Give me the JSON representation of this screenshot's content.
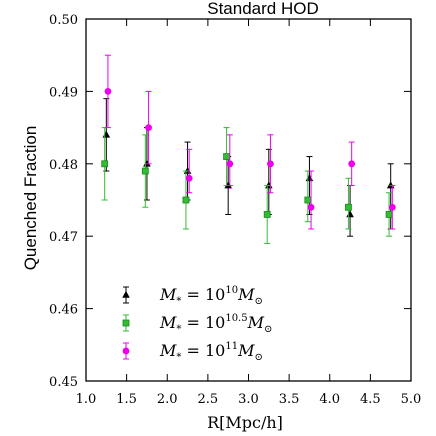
{
  "chart_data": {
    "type": "scatter",
    "title": "Standard HOD",
    "xlabel": "R[Mpc/h]",
    "ylabel": "Quenched Fraction",
    "xlim": [
      1.0,
      5.0
    ],
    "ylim": [
      0.45,
      0.5
    ],
    "xticks": [
      "1.0",
      "1.5",
      "2.0",
      "2.5",
      "3.0",
      "3.5",
      "4.0",
      "4.5",
      "5.0"
    ],
    "yticks": [
      "0.45",
      "0.46",
      "0.47",
      "0.48",
      "0.49",
      "0.50"
    ],
    "grid": false,
    "legend_position": "bottom-left",
    "series": [
      {
        "label_base": "10",
        "label_exp": "10",
        "marker": "triangle",
        "color": "#000000",
        "x": [
          1.25,
          1.75,
          2.25,
          2.75,
          3.25,
          3.75,
          4.25,
          4.75
        ],
        "y": [
          0.484,
          0.48,
          0.479,
          0.477,
          0.477,
          0.478,
          0.473,
          0.477
        ],
        "yerr_low": [
          0.479,
          0.475,
          0.475,
          0.473,
          0.473,
          0.473,
          0.47,
          0.471
        ],
        "yerr_high": [
          0.489,
          0.485,
          0.483,
          0.481,
          0.482,
          0.481,
          0.477,
          0.48
        ]
      },
      {
        "label_base": "10",
        "label_exp": "10.5",
        "marker": "square",
        "color": "#33bb33",
        "x": [
          1.25,
          1.75,
          2.25,
          2.75,
          3.25,
          3.75,
          4.25,
          4.75
        ],
        "y": [
          0.48,
          0.479,
          0.475,
          0.481,
          0.473,
          0.475,
          0.474,
          0.473
        ],
        "yerr_low": [
          0.475,
          0.474,
          0.471,
          0.477,
          0.469,
          0.472,
          0.471,
          0.47
        ],
        "yerr_high": [
          0.485,
          0.484,
          0.479,
          0.485,
          0.477,
          0.479,
          0.478,
          0.476
        ]
      },
      {
        "label_base": "10",
        "label_exp": "11",
        "marker": "circle",
        "color": "#ee00ee",
        "x": [
          1.25,
          1.75,
          2.25,
          2.75,
          3.25,
          3.75,
          4.25,
          4.75
        ],
        "y": [
          0.49,
          0.485,
          0.478,
          0.48,
          0.48,
          0.474,
          0.48,
          0.474
        ],
        "yerr_low": [
          0.485,
          0.48,
          0.476,
          0.477,
          0.476,
          0.471,
          0.477,
          0.471
        ],
        "yerr_high": [
          0.495,
          0.49,
          0.482,
          0.484,
          0.484,
          0.479,
          0.483,
          0.477
        ]
      }
    ]
  }
}
